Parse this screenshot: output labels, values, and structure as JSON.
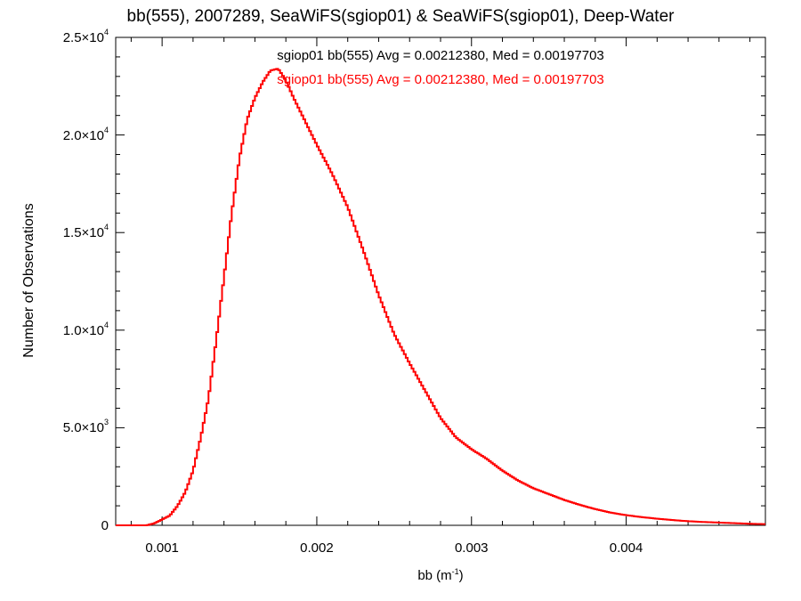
{
  "chart_data": {
    "type": "histogram-step",
    "title": "bb(555), 2007289, SeaWiFS(sgiop01) & SeaWiFS(sgiop01), Deep-Water",
    "xlabel": {
      "base": "bb (m",
      "exponent": "-1",
      "close": ")"
    },
    "ylabel": "Number of Observations",
    "xlim": [
      0.0007,
      0.0049
    ],
    "ylim": [
      0,
      25000
    ],
    "x_ticks": [
      {
        "value": 0.001,
        "label": "0.001"
      },
      {
        "value": 0.002,
        "label": "0.002"
      },
      {
        "value": 0.003,
        "label": "0.003"
      },
      {
        "value": 0.004,
        "label": "0.004"
      }
    ],
    "y_ticks": [
      {
        "value": 0,
        "mantissa": "0",
        "exponent": ""
      },
      {
        "value": 5000,
        "mantissa": "5.0×10",
        "exponent": "3"
      },
      {
        "value": 10000,
        "mantissa": "1.0×10",
        "exponent": "4"
      },
      {
        "value": 15000,
        "mantissa": "1.5×10",
        "exponent": "4"
      },
      {
        "value": 20000,
        "mantissa": "2.0×10",
        "exponent": "4"
      },
      {
        "value": 25000,
        "mantissa": "2.5×10",
        "exponent": "4"
      }
    ],
    "annotations": [
      {
        "text": "sgiop01 bb(555) Avg = 0.00212380, Med = 0.00197703",
        "color": "#000000"
      },
      {
        "text": "sgiop01 bb(555) Avg = 0.00212380, Med = 0.00197703",
        "color": "#ff0000"
      }
    ],
    "series": [
      {
        "color": "#ff0000",
        "x": [
          0.0007,
          0.0009,
          0.00095,
          0.001,
          0.00105,
          0.0011,
          0.00115,
          0.0012,
          0.00125,
          0.0013,
          0.00135,
          0.0014,
          0.00145,
          0.0015,
          0.00155,
          0.0016,
          0.00165,
          0.0017,
          0.00175,
          0.0018,
          0.00185,
          0.0019,
          0.00195,
          0.002,
          0.0021,
          0.0022,
          0.0023,
          0.0024,
          0.0025,
          0.0026,
          0.0027,
          0.0028,
          0.0029,
          0.003,
          0.0031,
          0.0032,
          0.0033,
          0.0034,
          0.0035,
          0.0036,
          0.0037,
          0.0038,
          0.0039,
          0.004,
          0.0041,
          0.0042,
          0.0043,
          0.0044,
          0.0045,
          0.0046,
          0.0047,
          0.0048,
          0.0049
        ],
        "y": [
          0,
          0,
          100,
          300,
          500,
          1000,
          1700,
          2800,
          4500,
          6500,
          9500,
          12700,
          16000,
          18800,
          20800,
          21900,
          22700,
          23300,
          23400,
          22800,
          21900,
          21100,
          20300,
          19500,
          18000,
          16300,
          14100,
          11800,
          9800,
          8300,
          6900,
          5500,
          4500,
          3900,
          3400,
          2800,
          2300,
          1900,
          1600,
          1300,
          1050,
          830,
          650,
          520,
          420,
          340,
          270,
          210,
          170,
          140,
          110,
          80,
          60
        ]
      }
    ]
  }
}
